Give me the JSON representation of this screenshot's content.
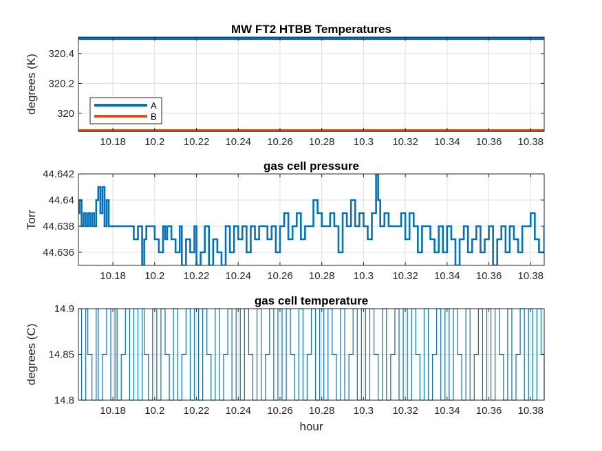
{
  "chart_data": [
    {
      "type": "line",
      "title": "MW FT2 HTBB Temperatures",
      "xlabel": "",
      "ylabel": "degrees (K)",
      "xlim": [
        10.1635,
        10.3865
      ],
      "ylim": [
        319.88,
        320.51
      ],
      "xticks": [
        10.18,
        10.2,
        10.22,
        10.24,
        10.26,
        10.28,
        10.3,
        10.32,
        10.34,
        10.36,
        10.38
      ],
      "xtick_labels": [
        "10.18",
        "10.2",
        "10.22",
        "10.24",
        "10.26",
        "10.28",
        "10.3",
        "10.32",
        "10.34",
        "10.36",
        "10.38"
      ],
      "yticks": [
        320,
        320.2,
        320.4
      ],
      "ytick_labels": [
        "320",
        "320.2",
        "320.4"
      ],
      "grid": true,
      "legend": "bottom-left",
      "series": [
        {
          "name": "A",
          "color": "#0072BD",
          "x": [
            10.1635,
            10.3865
          ],
          "values": [
            320.5,
            320.5
          ]
        },
        {
          "name": "B",
          "color": "#D95319",
          "x": [
            10.1635,
            10.3865
          ],
          "values": [
            319.885,
            319.885
          ]
        }
      ]
    },
    {
      "type": "line",
      "title": "gas cell pressure",
      "xlabel": "",
      "ylabel": "Torr",
      "xlim": [
        10.1635,
        10.3865
      ],
      "ylim": [
        44.635,
        44.642
      ],
      "xticks": [
        10.18,
        10.2,
        10.22,
        10.24,
        10.26,
        10.28,
        10.3,
        10.32,
        10.34,
        10.36,
        10.38
      ],
      "xtick_labels": [
        "10.18",
        "10.2",
        "10.22",
        "10.24",
        "10.26",
        "10.28",
        "10.3",
        "10.32",
        "10.34",
        "10.36",
        "10.38"
      ],
      "yticks": [
        44.636,
        44.638,
        44.64,
        44.642
      ],
      "ytick_labels": [
        "44.636",
        "44.638",
        "44.64",
        "44.642"
      ],
      "grid": true,
      "series": [
        {
          "color": "#0072BD",
          "x": [
            10.1635,
            10.164,
            10.165,
            10.166,
            10.167,
            10.168,
            10.169,
            10.17,
            10.171,
            10.172,
            10.173,
            10.174,
            10.175,
            10.176,
            10.177,
            10.178,
            10.18,
            10.182,
            10.185,
            10.188,
            10.19,
            10.192,
            10.194,
            10.195,
            10.196,
            10.198,
            10.2,
            10.202,
            10.204,
            10.205,
            10.206,
            10.208,
            10.21,
            10.212,
            10.213,
            10.215,
            10.217,
            10.219,
            10.22,
            10.222,
            10.224,
            10.226,
            10.228,
            10.23,
            10.232,
            10.234,
            10.236,
            10.238,
            10.24,
            10.242,
            10.244,
            10.246,
            10.248,
            10.25,
            10.252,
            10.254,
            10.256,
            10.258,
            10.26,
            10.262,
            10.264,
            10.266,
            10.268,
            10.27,
            10.272,
            10.274,
            10.276,
            10.278,
            10.28,
            10.282,
            10.284,
            10.286,
            10.288,
            10.29,
            10.292,
            10.294,
            10.296,
            10.298,
            10.3,
            10.302,
            10.304,
            10.306,
            10.307,
            10.308,
            10.31,
            10.312,
            10.314,
            10.316,
            10.318,
            10.32,
            10.322,
            10.324,
            10.326,
            10.328,
            10.33,
            10.332,
            10.334,
            10.336,
            10.338,
            10.34,
            10.342,
            10.344,
            10.346,
            10.348,
            10.35,
            10.352,
            10.354,
            10.356,
            10.358,
            10.36,
            10.362,
            10.364,
            10.366,
            10.368,
            10.37,
            10.372,
            10.374,
            10.376,
            10.378,
            10.38,
            10.382,
            10.384,
            10.3865
          ],
          "values": [
            44.639,
            44.64,
            44.638,
            44.639,
            44.638,
            44.639,
            44.638,
            44.639,
            44.638,
            44.64,
            44.641,
            44.639,
            44.641,
            44.638,
            44.64,
            44.638,
            44.638,
            44.638,
            44.638,
            44.638,
            44.637,
            44.638,
            44.635,
            44.637,
            44.638,
            44.638,
            44.637,
            44.636,
            44.638,
            44.637,
            44.638,
            44.637,
            44.636,
            44.638,
            44.635,
            44.637,
            44.636,
            44.638,
            44.635,
            44.636,
            44.638,
            44.635,
            44.637,
            44.636,
            44.635,
            44.638,
            44.636,
            44.638,
            44.637,
            44.638,
            44.636,
            44.638,
            44.637,
            44.638,
            44.638,
            44.637,
            44.638,
            44.636,
            44.638,
            44.639,
            44.637,
            44.638,
            44.639,
            44.637,
            44.638,
            44.638,
            44.64,
            44.639,
            44.638,
            44.638,
            44.639,
            44.638,
            44.636,
            44.639,
            44.638,
            44.64,
            44.638,
            44.639,
            44.638,
            44.637,
            44.639,
            44.642,
            44.64,
            44.638,
            44.639,
            44.638,
            44.638,
            44.638,
            44.639,
            44.637,
            44.639,
            44.638,
            44.636,
            44.638,
            44.638,
            44.637,
            44.636,
            44.638,
            44.636,
            44.638,
            44.637,
            44.635,
            44.637,
            44.638,
            44.636,
            44.637,
            44.638,
            44.636,
            44.637,
            44.638,
            44.635,
            44.637,
            44.638,
            44.636,
            44.638,
            44.637,
            44.636,
            44.638,
            44.638,
            44.639,
            44.637,
            44.636,
            44.638
          ]
        }
      ]
    },
    {
      "type": "line",
      "title": "gas cell temperature",
      "xlabel": "hour",
      "ylabel": "degrees (C)",
      "xlim": [
        10.1635,
        10.3865
      ],
      "ylim": [
        14.8,
        14.9
      ],
      "xticks": [
        10.18,
        10.2,
        10.22,
        10.24,
        10.26,
        10.28,
        10.3,
        10.32,
        10.34,
        10.36,
        10.38
      ],
      "xtick_labels": [
        "10.18",
        "10.2",
        "10.22",
        "10.24",
        "10.26",
        "10.28",
        "10.3",
        "10.32",
        "10.34",
        "10.36",
        "10.38"
      ],
      "yticks": [
        14.8,
        14.85,
        14.9
      ],
      "ytick_labels": [
        "14.8",
        "14.85",
        "14.9"
      ],
      "grid": true,
      "series": [
        {
          "color": "#0072BD",
          "x": [
            10.1635,
            10.165,
            10.167,
            10.168,
            10.17,
            10.172,
            10.173,
            10.175,
            10.177,
            10.179,
            10.181,
            10.182,
            10.184,
            10.186,
            10.188,
            10.19,
            10.192,
            10.194,
            10.195,
            10.197,
            10.199,
            10.201,
            10.203,
            10.205,
            10.207,
            10.209,
            10.211,
            10.213,
            10.215,
            10.217,
            10.219,
            10.221,
            10.223,
            10.225,
            10.227,
            10.229,
            10.231,
            10.233,
            10.235,
            10.237,
            10.239,
            10.241,
            10.243,
            10.245,
            10.247,
            10.249,
            10.251,
            10.253,
            10.255,
            10.257,
            10.259,
            10.261,
            10.263,
            10.265,
            10.267,
            10.269,
            10.271,
            10.273,
            10.275,
            10.277,
            10.279,
            10.281,
            10.283,
            10.285,
            10.287,
            10.289,
            10.291,
            10.293,
            10.295,
            10.297,
            10.299,
            10.301,
            10.303,
            10.305,
            10.307,
            10.309,
            10.311,
            10.313,
            10.315,
            10.317,
            10.319,
            10.321,
            10.323,
            10.325,
            10.327,
            10.329,
            10.331,
            10.333,
            10.335,
            10.337,
            10.339,
            10.341,
            10.343,
            10.345,
            10.347,
            10.349,
            10.351,
            10.353,
            10.355,
            10.357,
            10.359,
            10.361,
            10.363,
            10.365,
            10.367,
            10.369,
            10.371,
            10.373,
            10.375,
            10.377,
            10.379,
            10.381,
            10.383,
            10.385,
            10.3865
          ],
          "values": [
            14.9,
            14.8,
            14.9,
            14.85,
            14.8,
            14.9,
            14.8,
            14.85,
            14.9,
            14.8,
            14.9,
            14.8,
            14.85,
            14.9,
            14.8,
            14.9,
            14.8,
            14.9,
            14.85,
            14.8,
            14.9,
            14.8,
            14.9,
            14.85,
            14.8,
            14.9,
            14.8,
            14.85,
            14.9,
            14.8,
            14.9,
            14.8,
            14.9,
            14.85,
            14.8,
            14.9,
            14.8,
            14.85,
            14.9,
            14.8,
            14.9,
            14.8,
            14.9,
            14.85,
            14.8,
            14.9,
            14.8,
            14.85,
            14.9,
            14.8,
            14.9,
            14.8,
            14.9,
            14.85,
            14.8,
            14.9,
            14.8,
            14.85,
            14.9,
            14.8,
            14.9,
            14.8,
            14.9,
            14.85,
            14.8,
            14.9,
            14.8,
            14.85,
            14.9,
            14.8,
            14.9,
            14.8,
            14.9,
            14.85,
            14.8,
            14.9,
            14.8,
            14.85,
            14.9,
            14.8,
            14.9,
            14.8,
            14.9,
            14.85,
            14.8,
            14.9,
            14.8,
            14.85,
            14.9,
            14.8,
            14.9,
            14.8,
            14.9,
            14.85,
            14.8,
            14.9,
            14.8,
            14.85,
            14.9,
            14.8,
            14.9,
            14.8,
            14.9,
            14.85,
            14.8,
            14.9,
            14.8,
            14.85,
            14.9,
            14.8,
            14.9,
            14.8,
            14.9,
            14.85,
            14.8
          ]
        }
      ]
    }
  ]
}
